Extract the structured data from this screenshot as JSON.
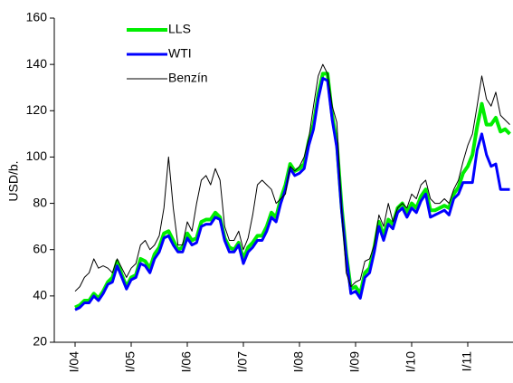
{
  "chart_data": {
    "type": "line",
    "y_label": "USD/b.",
    "categories": [
      "I/04",
      null,
      null,
      null,
      null,
      null,
      null,
      null,
      null,
      null,
      null,
      null,
      "I/05",
      null,
      null,
      null,
      null,
      null,
      null,
      null,
      null,
      null,
      null,
      null,
      "I/06",
      null,
      null,
      null,
      null,
      null,
      null,
      null,
      null,
      null,
      null,
      null,
      "I/07",
      null,
      null,
      null,
      null,
      null,
      null,
      null,
      null,
      null,
      null,
      null,
      "I/08",
      null,
      null,
      null,
      null,
      null,
      null,
      null,
      null,
      null,
      null,
      null,
      "I/09",
      null,
      null,
      null,
      null,
      null,
      null,
      null,
      null,
      null,
      null,
      null,
      "I/10",
      null,
      null,
      null,
      null,
      null,
      null,
      null,
      null,
      null,
      null,
      null,
      "I/11",
      null,
      null,
      null,
      null,
      null,
      null,
      null,
      null,
      null
    ],
    "ylim": [
      20,
      160
    ],
    "yticks": [
      20,
      40,
      60,
      80,
      100,
      120,
      140,
      160
    ],
    "legend": "top-left",
    "series": [
      {
        "name": "LLS",
        "color": "#00ee00",
        "width": 4,
        "values": [
          35,
          36,
          38,
          38,
          41,
          39,
          42,
          46,
          48,
          55,
          49,
          44,
          48,
          49,
          56,
          55,
          52,
          58,
          61,
          67,
          68,
          64,
          60,
          61,
          67,
          64,
          65,
          72,
          73,
          73,
          76,
          74,
          65,
          61,
          60,
          63,
          56,
          61,
          63,
          66,
          66,
          70,
          76,
          74,
          82,
          88,
          97,
          94,
          95,
          97,
          107,
          114,
          127,
          136,
          136,
          118,
          106,
          79,
          58,
          43,
          44,
          41,
          50,
          52,
          61,
          72,
          66,
          73,
          71,
          78,
          80,
          76,
          80,
          78,
          83,
          86,
          77,
          77,
          78,
          79,
          78,
          84,
          87,
          93,
          96,
          101,
          113,
          123,
          114,
          114,
          117,
          111,
          112,
          110
        ]
      },
      {
        "name": "WTI",
        "color": "#0000ff",
        "width": 3,
        "values": [
          34,
          35,
          37,
          37,
          40,
          38,
          41,
          45,
          46,
          53,
          48,
          43,
          47,
          48,
          54,
          53,
          50,
          56,
          59,
          65,
          66,
          62,
          59,
          59,
          65,
          62,
          63,
          70,
          71,
          71,
          74,
          73,
          64,
          59,
          59,
          62,
          54,
          59,
          61,
          64,
          64,
          68,
          74,
          72,
          80,
          86,
          95,
          92,
          93,
          95,
          105,
          112,
          125,
          134,
          133,
          116,
          104,
          77,
          57,
          41,
          42,
          39,
          48,
          50,
          59,
          70,
          64,
          71,
          69,
          76,
          78,
          74,
          78,
          76,
          81,
          84,
          74,
          75,
          76,
          77,
          75,
          82,
          84,
          89,
          89,
          89,
          103,
          110,
          101,
          96,
          97,
          86,
          86,
          86
        ]
      },
      {
        "name": "Benzín",
        "color": "#000000",
        "width": 1,
        "values": [
          42,
          44,
          48,
          50,
          56,
          52,
          53,
          52,
          50,
          56,
          52,
          48,
          52,
          54,
          62,
          64,
          60,
          62,
          66,
          78,
          100,
          78,
          62,
          62,
          72,
          68,
          80,
          90,
          92,
          88,
          95,
          90,
          70,
          64,
          64,
          68,
          60,
          65,
          75,
          88,
          90,
          88,
          86,
          80,
          82,
          84,
          96,
          94,
          96,
          100,
          108,
          122,
          135,
          140,
          136,
          122,
          115,
          78,
          50,
          44,
          46,
          47,
          55,
          56,
          62,
          75,
          70,
          80,
          72,
          78,
          80,
          78,
          84,
          82,
          88,
          90,
          82,
          80,
          80,
          82,
          80,
          86,
          90,
          98,
          105,
          110,
          122,
          135,
          125,
          122,
          128,
          118,
          116,
          114
        ]
      }
    ]
  }
}
